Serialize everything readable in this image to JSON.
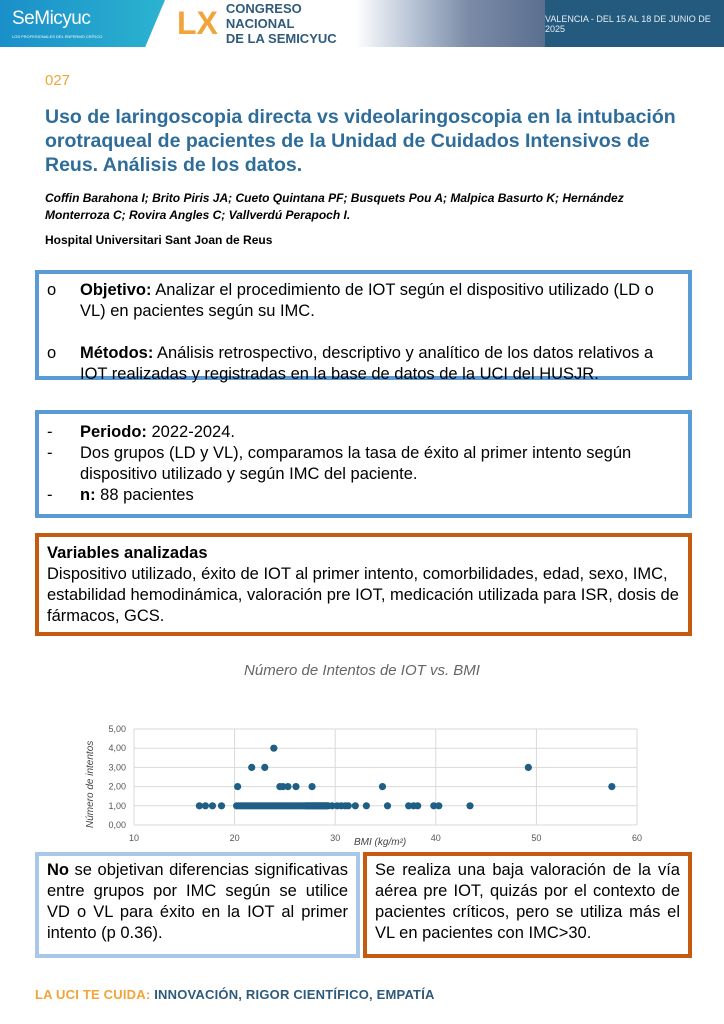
{
  "banner": {
    "logo": "SeMicyuc",
    "logo_tagline": "LOS PROFESIONALES DEL ENFERMO CRÍTICO",
    "roman": "LX",
    "congress_line1": "CONGRESO NACIONAL",
    "congress_line2": "DE LA SEMICYUC",
    "date": "VALENCIA - DEL 15 AL 18 DE JUNIO DE 2025"
  },
  "poster": {
    "number": "027",
    "title": "Uso de laringoscopia directa vs videolaringoscopia en la intubación orotraqueal de pacientes de la Unidad de Cuidados Intensivos de Reus. Análisis de los datos.",
    "authors": "Coffin Barahona I; Brito Piris JA; Cueto Quintana PF; Busquets Pou A; Malpica Basurto K; Hernández Monterroza C; Rovira Angles C; Vallverdú Perapoch I.",
    "hospital": "Hospital Universitari Sant Joan de Reus"
  },
  "box1": [
    {
      "marker": "o",
      "label": "Objetivo:",
      "text": " Analizar el procedimiento de IOT según el dispositivo utilizado (LD o VL) en pacientes según su IMC."
    },
    {
      "marker": "o",
      "label": "Métodos:",
      "text": " Análisis retrospectivo, descriptivo y analítico de los datos relativos a IOT realizadas y registradas en la base de datos de la UCI del HUSJR."
    }
  ],
  "box2": [
    {
      "marker": "-",
      "label": "Periodo:",
      "text": "  2022-2024."
    },
    {
      "marker": "-",
      "label": "",
      "text": "Dos grupos (LD y  VL),  comparamos la tasa de éxito al primer intento según dispositivo utilizado y según IMC del paciente."
    },
    {
      "marker": "-",
      "label": "n:",
      "text": " 88 pacientes"
    }
  ],
  "box3": {
    "heading": "Variables analizadas",
    "text": "Dispositivo utilizado, éxito de IOT al primer intento, comorbilidades, edad, sexo, IMC, estabilidad hemodinámica, valoración pre IOT, medicación utilizada para ISR, dosis de fármacos, GCS."
  },
  "chart_data": {
    "type": "scatter",
    "title": "Número de Intentos de IOT vs. BMI",
    "xlabel": "BMI (kg/m²)",
    "ylabel": "Número de intentos",
    "xlim": [
      10,
      60
    ],
    "ylim": [
      0,
      5
    ],
    "xticks": [
      "10",
      "20",
      "30",
      "40",
      "50",
      "60"
    ],
    "yticks": [
      "0,00",
      "1,00",
      "2,00",
      "3,00",
      "4,00",
      "5,00"
    ],
    "grid": true,
    "color": "#1f5f86",
    "points": [
      [
        16.5,
        1
      ],
      [
        17.1,
        1
      ],
      [
        17.8,
        1
      ],
      [
        18.7,
        1
      ],
      [
        20.2,
        1
      ],
      [
        20.4,
        1
      ],
      [
        20.6,
        1
      ],
      [
        20.8,
        1
      ],
      [
        21.0,
        1
      ],
      [
        21.2,
        1
      ],
      [
        21.4,
        1
      ],
      [
        21.6,
        1
      ],
      [
        21.8,
        1
      ],
      [
        22.0,
        1
      ],
      [
        22.2,
        1
      ],
      [
        22.4,
        1
      ],
      [
        22.6,
        1
      ],
      [
        22.8,
        1
      ],
      [
        23.0,
        1
      ],
      [
        23.2,
        1
      ],
      [
        23.4,
        1
      ],
      [
        23.6,
        1
      ],
      [
        23.8,
        1
      ],
      [
        24.0,
        1
      ],
      [
        24.2,
        1
      ],
      [
        24.4,
        1
      ],
      [
        24.6,
        1
      ],
      [
        24.8,
        1
      ],
      [
        25.0,
        1
      ],
      [
        25.2,
        1
      ],
      [
        25.4,
        1
      ],
      [
        25.6,
        1
      ],
      [
        25.8,
        1
      ],
      [
        26.0,
        1
      ],
      [
        26.2,
        1
      ],
      [
        26.4,
        1
      ],
      [
        26.6,
        1
      ],
      [
        26.8,
        1
      ],
      [
        27.0,
        1
      ],
      [
        27.1,
        1
      ],
      [
        27.2,
        1
      ],
      [
        27.3,
        1
      ],
      [
        27.4,
        1
      ],
      [
        27.5,
        1
      ],
      [
        27.6,
        1
      ],
      [
        27.7,
        1
      ],
      [
        27.8,
        1
      ],
      [
        27.9,
        1
      ],
      [
        28.0,
        1
      ],
      [
        28.1,
        1
      ],
      [
        28.2,
        1
      ],
      [
        28.3,
        1
      ],
      [
        28.4,
        1
      ],
      [
        28.5,
        1
      ],
      [
        28.6,
        1
      ],
      [
        28.7,
        1
      ],
      [
        28.8,
        1
      ],
      [
        28.9,
        1
      ],
      [
        29.0,
        1
      ],
      [
        29.1,
        1
      ],
      [
        29.2,
        1
      ],
      [
        29.3,
        1
      ],
      [
        29.7,
        1
      ],
      [
        30.2,
        1
      ],
      [
        30.6,
        1
      ],
      [
        31.0,
        1
      ],
      [
        31.3,
        1
      ],
      [
        32.0,
        1
      ],
      [
        33.1,
        1
      ],
      [
        35.2,
        1
      ],
      [
        37.3,
        1
      ],
      [
        37.8,
        1
      ],
      [
        38.2,
        1
      ],
      [
        39.8,
        1
      ],
      [
        40.3,
        1
      ],
      [
        43.4,
        1
      ],
      [
        20.3,
        2
      ],
      [
        24.5,
        2
      ],
      [
        24.8,
        2
      ],
      [
        25.3,
        2
      ],
      [
        26.1,
        2
      ],
      [
        27.7,
        2
      ],
      [
        34.7,
        2
      ],
      [
        57.5,
        2
      ],
      [
        21.7,
        3
      ],
      [
        23.0,
        3
      ],
      [
        49.2,
        3
      ],
      [
        23.9,
        4
      ]
    ]
  },
  "conclusion_left": {
    "bold": "No",
    "text": " se objetivan diferencias significativas entre grupos por IMC según se utilice VD o VL para éxito en la IOT al primer intento (p 0.36)."
  },
  "conclusion_right": "Se realiza una baja valoración de la vía aérea pre IOT, quizás por el contexto de pacientes críticos, pero se utiliza más el VL en pacientes con IMC>30.",
  "footer": {
    "part1": "LA UCI TE CUIDA:",
    "part2": " INNOVACIÓN, RIGOR CIENTÍFICO, EMPATÍA"
  }
}
